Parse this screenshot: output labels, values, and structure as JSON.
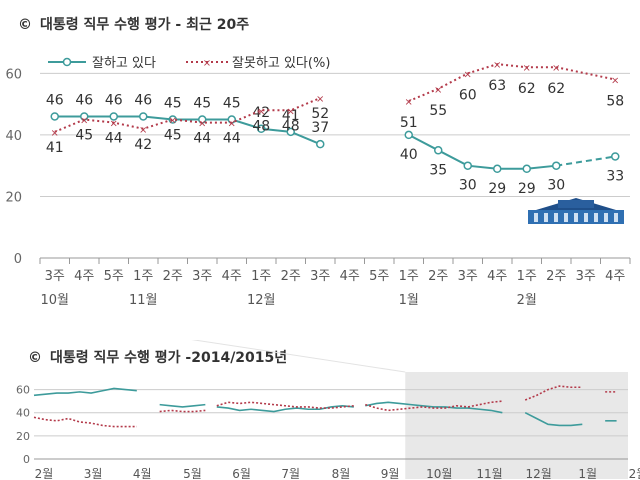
{
  "header": {
    "title1_symbol": "©",
    "title1_text": "대통령 직무 수행 평가 - 최근 20주",
    "title2_symbol": "©",
    "title2_text": "대통령 직무 수행 평가 -2014/2015년"
  },
  "colors": {
    "good": "#3d9b9b",
    "bad": "#b33a4a",
    "axis": "#999999",
    "grid": "#cccccc",
    "shade": "#e8e8e8"
  },
  "chart_data": [
    {
      "type": "line",
      "title": "대통령 직무 수행 평가 - 최근 20주",
      "legend_position": "top",
      "ylim": [
        0,
        65
      ],
      "yticks": [
        0,
        20,
        40,
        60
      ],
      "grid": true,
      "categories": [
        "3주",
        "4주",
        "5주",
        "1주",
        "2주",
        "3주",
        "4주",
        "1주",
        "2주",
        "3주",
        "4주",
        "5주",
        "1주",
        "2주",
        "3주",
        "4주",
        "1주",
        "2주",
        "3주",
        "4주"
      ],
      "month_labels": [
        {
          "index": 0,
          "label": "10월"
        },
        {
          "index": 3,
          "label": "11월"
        },
        {
          "index": 7,
          "label": "12월"
        },
        {
          "index": 12,
          "label": "1월"
        },
        {
          "index": 16,
          "label": "2월"
        }
      ],
      "series": [
        {
          "name": "잘하고 있다",
          "style": "solid",
          "values": [
            46,
            46,
            46,
            46,
            45,
            45,
            45,
            42,
            41,
            37,
            null,
            null,
            40,
            35,
            30,
            29,
            29,
            30,
            null,
            33
          ],
          "dashed_gap": [
            17,
            19
          ]
        },
        {
          "name": "잘못하고 있다(%)",
          "style": "dotted",
          "values": [
            41,
            45,
            44,
            42,
            45,
            44,
            44,
            48,
            48,
            52,
            null,
            null,
            51,
            55,
            60,
            63,
            62,
            62,
            null,
            58
          ],
          "dashed_gap": [
            17,
            19
          ]
        }
      ],
      "point_labels": {
        "good": [
          46,
          46,
          46,
          46,
          45,
          45,
          45,
          42,
          41,
          37,
          null,
          null,
          40,
          35,
          30,
          29,
          29,
          30,
          null,
          33
        ],
        "bad": [
          41,
          45,
          44,
          42,
          45,
          44,
          44,
          48,
          48,
          52,
          null,
          null,
          51,
          55,
          60,
          63,
          62,
          62,
          null,
          58
        ]
      }
    },
    {
      "type": "line",
      "title": "대통령 직무 수행 평가 -2014/2015년",
      "ylim": [
        0,
        70
      ],
      "yticks": [
        0,
        20,
        40,
        60
      ],
      "grid": true,
      "month_labels": [
        "2월",
        "3월",
        "4월",
        "5월",
        "6월",
        "7월",
        "8월",
        "9월",
        "10월",
        "11월",
        "12월",
        "1월",
        "2월"
      ],
      "series": [
        {
          "name": "잘하고 있다",
          "segments": [
            [
              [
                0,
                55
              ],
              [
                1,
                56
              ],
              [
                2,
                57
              ],
              [
                3,
                57
              ],
              [
                4,
                58
              ],
              [
                5,
                57
              ],
              [
                6,
                59
              ],
              [
                7,
                61
              ],
              [
                8,
                60
              ],
              [
                9,
                59
              ]
            ],
            [
              [
                11,
                47
              ],
              [
                12,
                46
              ],
              [
                13,
                45
              ],
              [
                14,
                46
              ],
              [
                15,
                47
              ]
            ],
            [
              [
                16,
                45
              ],
              [
                17,
                44
              ],
              [
                18,
                42
              ],
              [
                19,
                43
              ],
              [
                20,
                42
              ],
              [
                21,
                41
              ],
              [
                22,
                43
              ],
              [
                23,
                44
              ],
              [
                24,
                43
              ],
              [
                25,
                43
              ],
              [
                26,
                45
              ],
              [
                27,
                46
              ],
              [
                28,
                45
              ]
            ],
            [
              [
                29,
                46
              ],
              [
                30,
                48
              ],
              [
                31,
                49
              ],
              [
                32,
                48
              ],
              [
                33,
                47
              ],
              [
                34,
                46
              ],
              [
                35,
                45
              ],
              [
                36,
                45
              ],
              [
                37,
                44
              ],
              [
                38,
                44
              ],
              [
                39,
                43
              ],
              [
                40,
                42
              ],
              [
                41,
                40
              ]
            ],
            [
              [
                43,
                40
              ],
              [
                44,
                35
              ],
              [
                45,
                30
              ],
              [
                46,
                29
              ],
              [
                47,
                29
              ],
              [
                48,
                30
              ]
            ],
            [
              [
                50,
                33
              ],
              [
                51,
                33
              ]
            ]
          ]
        },
        {
          "name": "잘못하고 있다",
          "segments": [
            [
              [
                0,
                36
              ],
              [
                1,
                34
              ],
              [
                2,
                33
              ],
              [
                3,
                35
              ],
              [
                4,
                32
              ],
              [
                5,
                31
              ],
              [
                6,
                29
              ],
              [
                7,
                28
              ],
              [
                8,
                28
              ],
              [
                9,
                28
              ]
            ],
            [
              [
                11,
                41
              ],
              [
                12,
                42
              ],
              [
                13,
                41
              ],
              [
                14,
                41
              ],
              [
                15,
                42
              ]
            ],
            [
              [
                16,
                46
              ],
              [
                17,
                49
              ],
              [
                18,
                48
              ],
              [
                19,
                49
              ],
              [
                20,
                48
              ],
              [
                21,
                47
              ],
              [
                22,
                46
              ],
              [
                23,
                45
              ],
              [
                24,
                45
              ],
              [
                25,
                44
              ],
              [
                26,
                44
              ],
              [
                27,
                45
              ],
              [
                28,
                46
              ]
            ],
            [
              [
                29,
                47
              ],
              [
                30,
                44
              ],
              [
                31,
                42
              ],
              [
                32,
                43
              ],
              [
                33,
                44
              ],
              [
                34,
                45
              ],
              [
                35,
                44
              ],
              [
                36,
                44
              ],
              [
                37,
                46
              ],
              [
                38,
                45
              ],
              [
                39,
                47
              ],
              [
                40,
                49
              ],
              [
                41,
                50
              ]
            ],
            [
              [
                43,
                51
              ],
              [
                44,
                55
              ],
              [
                45,
                60
              ],
              [
                46,
                63
              ],
              [
                47,
                62
              ],
              [
                48,
                62
              ]
            ],
            [
              [
                50,
                58
              ],
              [
                51,
                58
              ]
            ]
          ]
        }
      ]
    }
  ]
}
